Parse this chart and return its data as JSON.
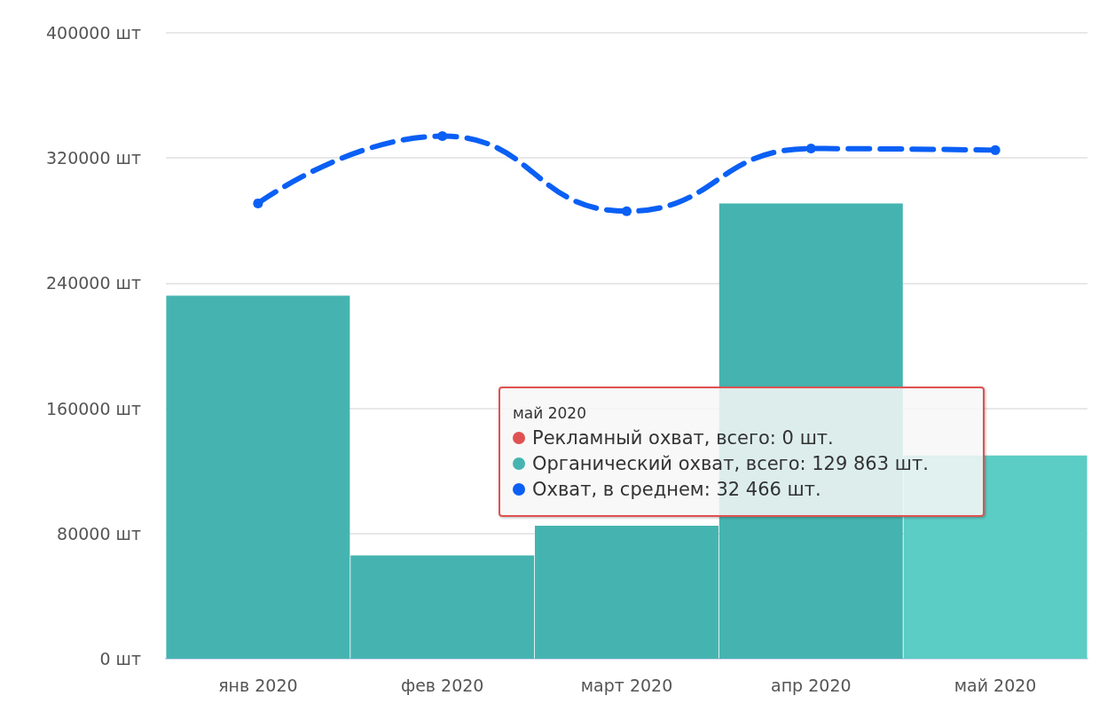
{
  "chart_data": {
    "type": "bar",
    "categories": [
      "янв 2020",
      "фев 2020",
      "март 2020",
      "апр 2020",
      "май 2020"
    ],
    "series": [
      {
        "colors": [
          "#45b4b0",
          "#45b4b0",
          "#45b4b0",
          "#45b4b0",
          "#5ccdc4"
        ],
        "values": [
          232000,
          66000,
          85000,
          291000,
          129863
        ]
      },
      {
        "type": "line",
        "color": "#0a5ff5",
        "values": [
          291000,
          334000,
          286000,
          326000,
          325000
        ]
      }
    ],
    "ylim": [
      0,
      400000
    ],
    "yticks": [
      {
        "value": 0,
        "label": "0 шт"
      },
      {
        "value": 80000,
        "label": "80000 шт"
      },
      {
        "value": 160000,
        "label": "160000 шт"
      },
      {
        "value": 240000,
        "label": "240000 шт"
      },
      {
        "value": 320000,
        "label": "320000 шт"
      },
      {
        "value": 400000,
        "label": "400000 шт"
      }
    ],
    "grid": "y",
    "marker": "circle",
    "line_style": "dashed",
    "annotations": [
      "май 2020",
      "Рекламный охват, всего: 0 шт.",
      "Органический охват, всего: 129 863 шт.",
      "Охват, в среднем: 32 466 шт."
    ]
  }
}
